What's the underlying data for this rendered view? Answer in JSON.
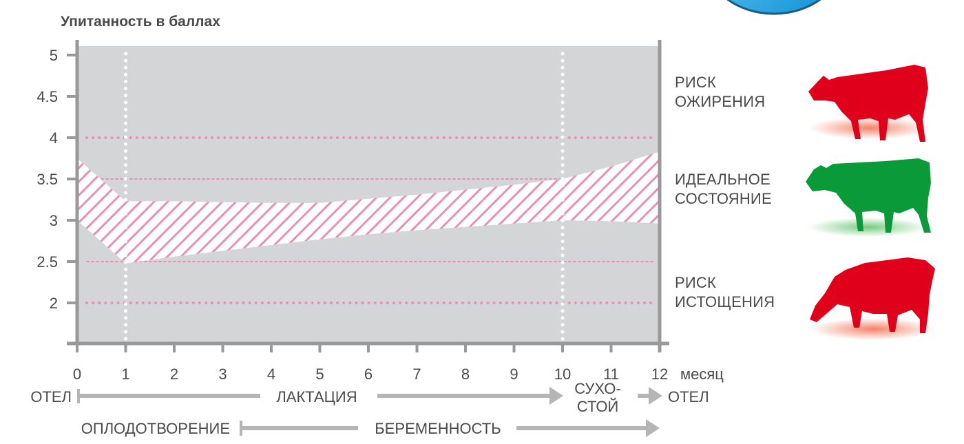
{
  "chart_data": {
    "type": "area",
    "title": "Упитанность в баллах",
    "xlabel": "месяц",
    "ylabel": "",
    "x_ticks": [
      "0",
      "1",
      "2",
      "3",
      "4",
      "5",
      "6",
      "7",
      "8",
      "9",
      "10",
      "11",
      "12"
    ],
    "y_ticks": [
      "5",
      "4.5",
      "4",
      "3.5",
      "3",
      "2.5",
      "2"
    ],
    "xlim": [
      0,
      12
    ],
    "ylim": [
      1.5,
      5.1
    ],
    "band": {
      "name": "",
      "x": [
        0,
        1,
        2,
        3,
        4,
        5,
        6,
        7,
        8,
        9,
        10,
        11,
        12
      ],
      "upper": [
        3.75,
        3.23,
        3.23,
        3.22,
        3.21,
        3.21,
        3.26,
        3.31,
        3.37,
        3.43,
        3.5,
        3.65,
        3.83
      ],
      "lower": [
        3.0,
        2.48,
        2.56,
        2.63,
        2.7,
        2.77,
        2.83,
        2.88,
        2.92,
        2.96,
        3.0,
        2.99,
        2.96
      ]
    },
    "reference_lines": [
      {
        "y": 4.0,
        "style": "dotted",
        "color": "#e890b4"
      },
      {
        "y": 3.5,
        "style": "dashed",
        "color": "#e890b4"
      },
      {
        "y": 2.5,
        "style": "dashed",
        "color": "#e890b4"
      },
      {
        "y": 2.0,
        "style": "dotted",
        "color": "#e890b4"
      }
    ],
    "vertical_markers": [
      {
        "x": 1,
        "style": "dotted",
        "color": "#ffffff"
      },
      {
        "x": 10,
        "style": "dotted",
        "color": "#ffffff"
      }
    ],
    "grid": false,
    "legend": "none",
    "colors": {
      "plot_bg": "#d4d5d7",
      "band_stripe": "#e890b4",
      "axis": "#999999",
      "arrow": "#b5b5b5"
    }
  },
  "phases": {
    "row1": {
      "start_label": "ОТЕЛ",
      "middle_label": "ЛАКТАЦИЯ",
      "dry_label_line1": "СУХО-",
      "dry_label_line2": "СТОЙ",
      "end_label": "ОТЕЛ",
      "start_x": 0,
      "arrow_end_x": 10,
      "dry_arrow_start_x": 11,
      "dry_arrow_end_x": 12
    },
    "row2": {
      "start_label": "ОПЛОДОТВОРЕНИЕ",
      "middle_label": "БЕРЕМЕННОСТЬ",
      "start_x": 3.4,
      "arrow_end_x": 12
    }
  },
  "risks": [
    {
      "line1": "РИСК",
      "line2": "ОЖИРЕНИЯ",
      "cow_icon": "cow-icon-red",
      "color": "#e0001b"
    },
    {
      "line1": "ИДЕАЛЬНОЕ",
      "line2": "СОСТОЯНИЕ",
      "cow_icon": "cow-icon-green",
      "color": "#0a9a3a"
    },
    {
      "line1": "РИСК",
      "line2": "ИСТОЩЕНИЯ",
      "cow_icon": "cow-grazing-icon-red",
      "color": "#e0001b"
    }
  ]
}
